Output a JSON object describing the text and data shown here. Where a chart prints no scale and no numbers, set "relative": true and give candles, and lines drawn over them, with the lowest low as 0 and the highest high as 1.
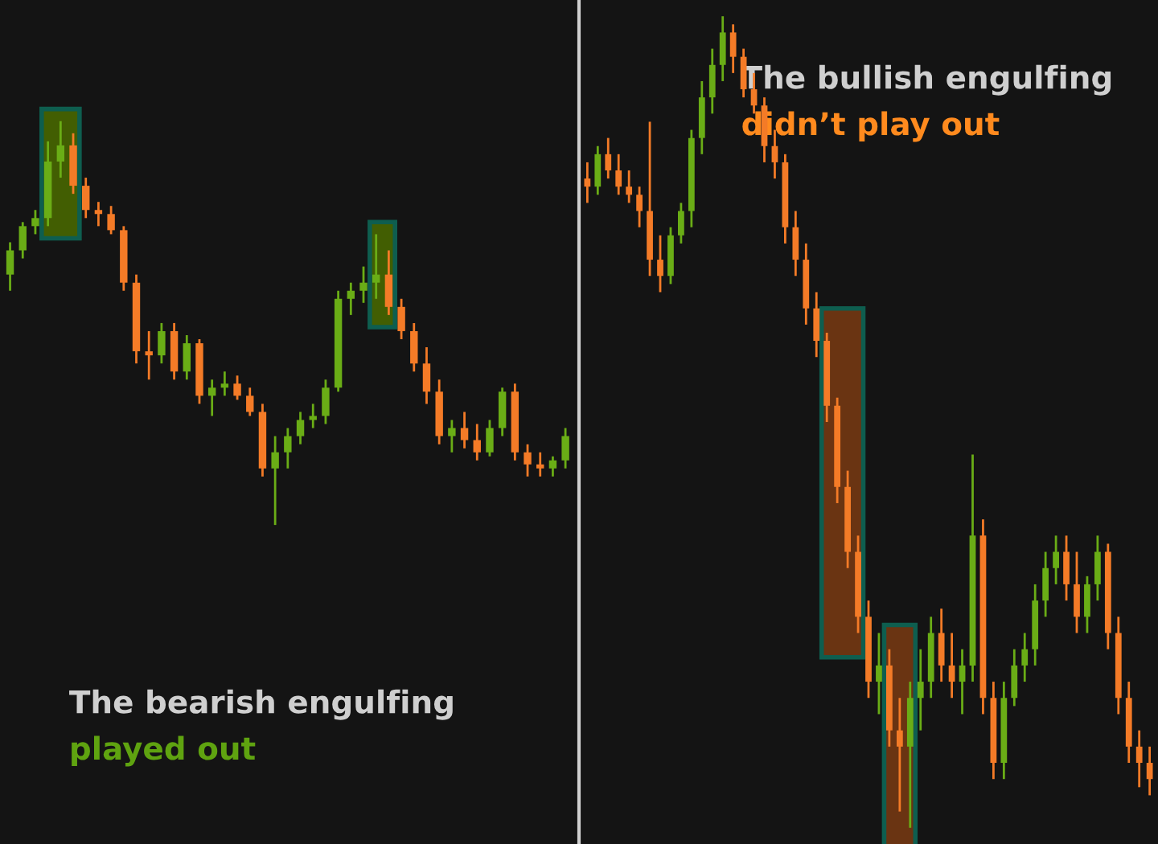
{
  "chart_data": [
    {
      "type": "candlestick",
      "relative": true,
      "categories": [
        null,
        null,
        null,
        null,
        null,
        null,
        null,
        null,
        null,
        null,
        null,
        null,
        null,
        null,
        null,
        null,
        null,
        null,
        null,
        null,
        null,
        null,
        null,
        null,
        null,
        null,
        null,
        null,
        null,
        null,
        null,
        null,
        null,
        null,
        null,
        null,
        null,
        null,
        null,
        null,
        null,
        null,
        null,
        null,
        null
      ],
      "ohlc": [
        [
          0.62,
          0.7,
          0.58,
          0.68
        ],
        [
          0.68,
          0.75,
          0.66,
          0.74
        ],
        [
          0.74,
          0.78,
          0.72,
          0.76
        ],
        [
          0.76,
          0.95,
          0.74,
          0.9
        ],
        [
          0.9,
          1.0,
          0.86,
          0.94
        ],
        [
          0.94,
          0.97,
          0.82,
          0.84
        ],
        [
          0.84,
          0.86,
          0.76,
          0.78
        ],
        [
          0.78,
          0.8,
          0.74,
          0.77
        ],
        [
          0.77,
          0.79,
          0.72,
          0.73
        ],
        [
          0.73,
          0.74,
          0.58,
          0.6
        ],
        [
          0.6,
          0.62,
          0.4,
          0.43
        ],
        [
          0.43,
          0.48,
          0.36,
          0.42
        ],
        [
          0.42,
          0.5,
          0.4,
          0.48
        ],
        [
          0.48,
          0.5,
          0.36,
          0.38
        ],
        [
          0.38,
          0.47,
          0.36,
          0.45
        ],
        [
          0.45,
          0.46,
          0.3,
          0.32
        ],
        [
          0.32,
          0.36,
          0.27,
          0.34
        ],
        [
          0.34,
          0.38,
          0.32,
          0.35
        ],
        [
          0.35,
          0.37,
          0.31,
          0.32
        ],
        [
          0.32,
          0.34,
          0.27,
          0.28
        ],
        [
          0.28,
          0.3,
          0.12,
          0.14
        ],
        [
          0.14,
          0.22,
          0.0,
          0.18
        ],
        [
          0.18,
          0.24,
          0.14,
          0.22
        ],
        [
          0.22,
          0.28,
          0.2,
          0.26
        ],
        [
          0.26,
          0.3,
          0.24,
          0.27
        ],
        [
          0.27,
          0.36,
          0.25,
          0.34
        ],
        [
          0.34,
          0.58,
          0.33,
          0.56
        ],
        [
          0.56,
          0.6,
          0.52,
          0.58
        ],
        [
          0.58,
          0.64,
          0.55,
          0.6
        ],
        [
          0.6,
          0.72,
          0.56,
          0.62
        ],
        [
          0.62,
          0.68,
          0.52,
          0.54
        ],
        [
          0.54,
          0.56,
          0.46,
          0.48
        ],
        [
          0.48,
          0.5,
          0.38,
          0.4
        ],
        [
          0.4,
          0.44,
          0.3,
          0.33
        ],
        [
          0.33,
          0.36,
          0.2,
          0.22
        ],
        [
          0.22,
          0.26,
          0.18,
          0.24
        ],
        [
          0.24,
          0.28,
          0.19,
          0.21
        ],
        [
          0.21,
          0.25,
          0.16,
          0.18
        ],
        [
          0.18,
          0.26,
          0.17,
          0.24
        ],
        [
          0.24,
          0.34,
          0.22,
          0.33
        ],
        [
          0.33,
          0.35,
          0.16,
          0.18
        ],
        [
          0.18,
          0.2,
          0.12,
          0.15
        ],
        [
          0.15,
          0.18,
          0.12,
          0.14
        ],
        [
          0.14,
          0.17,
          0.12,
          0.16
        ],
        [
          0.16,
          0.24,
          0.14,
          0.22
        ]
      ],
      "colors": [
        "#6aad16",
        "#6aad16",
        "#6aad16",
        "#6aad16",
        "#6aad16",
        "#f47b27",
        "#f47b27",
        "#f47b27",
        "#f47b27",
        "#f47b27",
        "#f47b27",
        "#f47b27",
        "#6aad16",
        "#f47b27",
        "#6aad16",
        "#f47b27",
        "#6aad16",
        "#6aad16",
        "#f47b27",
        "#f47b27",
        "#f47b27",
        "#6aad16",
        "#6aad16",
        "#6aad16",
        "#6aad16",
        "#6aad16",
        "#6aad16",
        "#6aad16",
        "#6aad16",
        "#6aad16",
        "#f47b27",
        "#f47b27",
        "#f47b27",
        "#f47b27",
        "#f47b27",
        "#6aad16",
        "#f47b27",
        "#f47b27",
        "#6aad16",
        "#6aad16",
        "#f47b27",
        "#f47b27",
        "#f47b27",
        "#6aad16",
        "#6aad16"
      ],
      "annotations": [
        "The bearish engulfing",
        "played out"
      ]
    },
    {
      "type": "candlestick",
      "relative": true,
      "categories": [
        null,
        null,
        null,
        null,
        null,
        null,
        null,
        null,
        null,
        null,
        null,
        null,
        null,
        null,
        null,
        null,
        null,
        null,
        null,
        null,
        null,
        null,
        null,
        null,
        null,
        null,
        null,
        null,
        null,
        null,
        null,
        null,
        null,
        null,
        null,
        null,
        null,
        null,
        null,
        null,
        null,
        null,
        null,
        null,
        null,
        null,
        null,
        null,
        null,
        null,
        null,
        null,
        null,
        null,
        null
      ],
      "ohlc": [
        [
          0.8,
          0.82,
          0.77,
          0.79
        ],
        [
          0.79,
          0.84,
          0.78,
          0.83
        ],
        [
          0.83,
          0.85,
          0.8,
          0.81
        ],
        [
          0.81,
          0.83,
          0.78,
          0.79
        ],
        [
          0.79,
          0.81,
          0.77,
          0.78
        ],
        [
          0.78,
          0.79,
          0.74,
          0.76
        ],
        [
          0.76,
          0.87,
          0.68,
          0.7
        ],
        [
          0.7,
          0.73,
          0.66,
          0.68
        ],
        [
          0.68,
          0.74,
          0.67,
          0.73
        ],
        [
          0.73,
          0.77,
          0.72,
          0.76
        ],
        [
          0.76,
          0.86,
          0.74,
          0.85
        ],
        [
          0.85,
          0.92,
          0.83,
          0.9
        ],
        [
          0.9,
          0.96,
          0.88,
          0.94
        ],
        [
          0.94,
          1.0,
          0.92,
          0.98
        ],
        [
          0.98,
          0.99,
          0.93,
          0.95
        ],
        [
          0.95,
          0.96,
          0.9,
          0.91
        ],
        [
          0.91,
          0.93,
          0.88,
          0.89
        ],
        [
          0.89,
          0.9,
          0.82,
          0.84
        ],
        [
          0.84,
          0.86,
          0.8,
          0.82
        ],
        [
          0.82,
          0.83,
          0.72,
          0.74
        ],
        [
          0.74,
          0.76,
          0.68,
          0.7
        ],
        [
          0.7,
          0.72,
          0.62,
          0.64
        ],
        [
          0.64,
          0.66,
          0.58,
          0.6
        ],
        [
          0.6,
          0.61,
          0.5,
          0.52
        ],
        [
          0.52,
          0.53,
          0.4,
          0.42
        ],
        [
          0.42,
          0.44,
          0.32,
          0.34
        ],
        [
          0.34,
          0.36,
          0.24,
          0.26
        ],
        [
          0.26,
          0.28,
          0.16,
          0.18
        ],
        [
          0.18,
          0.24,
          0.14,
          0.2
        ],
        [
          0.2,
          0.22,
          0.1,
          0.12
        ],
        [
          0.12,
          0.16,
          0.02,
          0.1
        ],
        [
          0.1,
          0.18,
          0.0,
          0.16
        ],
        [
          0.16,
          0.22,
          0.12,
          0.18
        ],
        [
          0.18,
          0.26,
          0.16,
          0.24
        ],
        [
          0.24,
          0.27,
          0.18,
          0.2
        ],
        [
          0.2,
          0.24,
          0.16,
          0.18
        ],
        [
          0.18,
          0.22,
          0.14,
          0.2
        ],
        [
          0.2,
          0.46,
          0.18,
          0.36
        ],
        [
          0.36,
          0.38,
          0.14,
          0.16
        ],
        [
          0.16,
          0.18,
          0.06,
          0.08
        ],
        [
          0.08,
          0.18,
          0.06,
          0.16
        ],
        [
          0.16,
          0.22,
          0.15,
          0.2
        ],
        [
          0.2,
          0.24,
          0.18,
          0.22
        ],
        [
          0.22,
          0.3,
          0.2,
          0.28
        ],
        [
          0.28,
          0.34,
          0.26,
          0.32
        ],
        [
          0.32,
          0.36,
          0.3,
          0.34
        ],
        [
          0.34,
          0.36,
          0.28,
          0.3
        ],
        [
          0.3,
          0.34,
          0.24,
          0.26
        ],
        [
          0.26,
          0.31,
          0.24,
          0.3
        ],
        [
          0.3,
          0.36,
          0.28,
          0.34
        ],
        [
          0.34,
          0.35,
          0.22,
          0.24
        ],
        [
          0.24,
          0.26,
          0.14,
          0.16
        ],
        [
          0.16,
          0.18,
          0.08,
          0.1
        ],
        [
          0.1,
          0.12,
          0.05,
          0.08
        ],
        [
          0.08,
          0.1,
          0.04,
          0.06
        ]
      ],
      "colors": [
        "#f47b27",
        "#6aad16",
        "#f47b27",
        "#f47b27",
        "#f47b27",
        "#f47b27",
        "#f47b27",
        "#f47b27",
        "#6aad16",
        "#6aad16",
        "#6aad16",
        "#6aad16",
        "#6aad16",
        "#6aad16",
        "#f47b27",
        "#f47b27",
        "#f47b27",
        "#f47b27",
        "#f47b27",
        "#f47b27",
        "#f47b27",
        "#f47b27",
        "#f47b27",
        "#f47b27",
        "#f47b27",
        "#f47b27",
        "#f47b27",
        "#f47b27",
        "#6aad16",
        "#f47b27",
        "#f47b27",
        "#6aad16",
        "#6aad16",
        "#6aad16",
        "#f47b27",
        "#f47b27",
        "#6aad16",
        "#6aad16",
        "#f47b27",
        "#f47b27",
        "#6aad16",
        "#6aad16",
        "#6aad16",
        "#6aad16",
        "#6aad16",
        "#6aad16",
        "#f47b27",
        "#f47b27",
        "#6aad16",
        "#6aad16",
        "#f47b27",
        "#f47b27",
        "#f47b27",
        "#f47b27",
        "#f47b27"
      ],
      "annotations": [
        "The bullish engulfing",
        "didn’t play out"
      ]
    }
  ]
}
